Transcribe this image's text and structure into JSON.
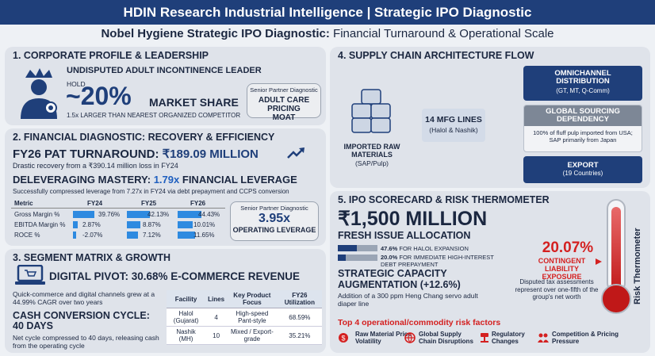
{
  "header": {
    "title": "HDIN Research Industrial Intelligence | Strategic IPO Diagnostic"
  },
  "subtitle": {
    "bold": "Nobel Hygiene Strategic IPO Diagnostic:",
    "rest": " Financial Turnaround & Operational Scale"
  },
  "s1": {
    "title": "1. CORPORATE PROFILE & LEADERSHIP",
    "leader": "UNDISPUTED ADULT INCONTINENCE LEADER",
    "hold": "HOLD",
    "share_value": "~20%",
    "share_label": "MARKET SHARE",
    "compare": "1.5x LARGER THAN NEAREST ORGANIZED COMPETITOR",
    "badge_label": "Senior Partner Diagnostic",
    "badge_value": "ADULT CARE PRICING MOAT"
  },
  "s2": {
    "title": "2. FINANCIAL DIAGNOSTIC: RECOVERY & EFFICIENCY",
    "pat_label": "FY26 PAT TURNAROUND:",
    "pat_value": "₹189.09 MILLION",
    "pat_note": "Drastic recovery from a ₹390.14 million loss in FY24",
    "lev_label": "DELEVERAGING MASTERY:",
    "lev_value": "1.79x",
    "lev_rest": "FINANCIAL LEVERAGE",
    "lev_note": "Successfully compressed leverage from 7.27x in FY24 via debt prepayment and CCPS conversion",
    "table": {
      "headers": [
        "Metric",
        "FY24",
        "FY25",
        "FY26"
      ],
      "rows": [
        {
          "name": "Gross Margin %",
          "values": [
            "39.76%",
            "42.13%",
            "44.43%"
          ],
          "fracs": [
            0.9,
            0.95,
            1.0
          ]
        },
        {
          "name": "EBITDA Margin %",
          "values": [
            "2.87%",
            "8.87%",
            "10.01%"
          ],
          "fracs": [
            0.2,
            0.55,
            0.62
          ]
        },
        {
          "name": "ROCE %",
          "values": [
            "-2.07%",
            "7.12%",
            "11.65%"
          ],
          "fracs": [
            0.12,
            0.45,
            0.72
          ]
        }
      ]
    },
    "badge_label": "Senior Partner Diagnostic",
    "badge_value": "3.95x",
    "badge_caption": "OPERATING LEVERAGE"
  },
  "s3": {
    "title": "3. SEGMENT MATRIX & GROWTH",
    "pivot": "DIGITAL PIVOT: 30.68% E-COMMERCE REVENUE",
    "pivot_note": "Quick-commerce and digital channels grew at a 44.99% CAGR over two years",
    "ccc_title": "CASH CONVERSION CYCLE: 40 DAYS",
    "ccc_note": "Net cycle compressed to 40 days, releasing cash from the operating cycle",
    "table": {
      "headers": [
        "Facility",
        "Lines",
        "Key Product Focus",
        "FY26 Utilization"
      ],
      "rows": [
        [
          "Halol (Gujarat)",
          "4",
          "High-speed Pant-style",
          "68.59%"
        ],
        [
          "Nashik (MH)",
          "10",
          "Mixed / Export-grade",
          "35.21%"
        ]
      ]
    }
  },
  "s4": {
    "title": "4. SUPPLY CHAIN ARCHITECTURE FLOW",
    "raw_label": "IMPORTED RAW MATERIALS",
    "raw_sub": "(SAP/Pulp)",
    "mfg_title": "14 MFG LINES",
    "mfg_sub": "(Halol & Nashik)",
    "omni_title": "OMNICHANNEL DISTRIBUTION",
    "omni_sub": "(GT, MT, Q-Comm)",
    "gsd_title": "GLOBAL SOURCING DEPENDENCY",
    "gsd_note": "100% of fluff pulp imported from USA; SAP primarily from Japan",
    "export_title": "EXPORT",
    "export_sub": "(19 Countries)"
  },
  "s5": {
    "title": "5. IPO SCORECARD & RISK THERMOMETER",
    "issue_value": "₹1,500 MILLION",
    "issue_label": "FRESH ISSUE ALLOCATION",
    "alloc": [
      {
        "pct": "47.6%",
        "label": "FOR HALOL EXPANSION",
        "frac": 0.476
      },
      {
        "pct": "20.0%",
        "label": "FOR IMMEDIATE HIGH-INTEREST DEBT PREPAYMENT",
        "frac": 0.2
      }
    ],
    "aug_title": "STRATEGIC CAPACITY AUGMENTATION (+12.6%)",
    "aug_note": "Addition of a 300 ppm Heng Chang servo adult diaper line",
    "liab_value": "20.07%",
    "liab_label": "CONTINGENT LIABILITY EXPOSURE",
    "liab_note": "Disputed tax assessments represent over one-fifth of the group's net worth",
    "thermo_label": "Risk Thermometer",
    "risk_title": "Top 4 operational/commodity risk factors",
    "risks": [
      {
        "icon": "price-volatility-icon",
        "text": "Raw Material Price Volatility"
      },
      {
        "icon": "globe-icon",
        "text": "Global Supply Chain Disruptions"
      },
      {
        "icon": "gavel-icon",
        "text": "Regulatory Changes"
      },
      {
        "icon": "competition-icon",
        "text": "Competition & Pricing Pressure"
      }
    ]
  },
  "colors": {
    "navy": "#1f3f7a",
    "blue": "#1f5fbf",
    "red": "#d42020",
    "bar": "#2e8ae0"
  }
}
